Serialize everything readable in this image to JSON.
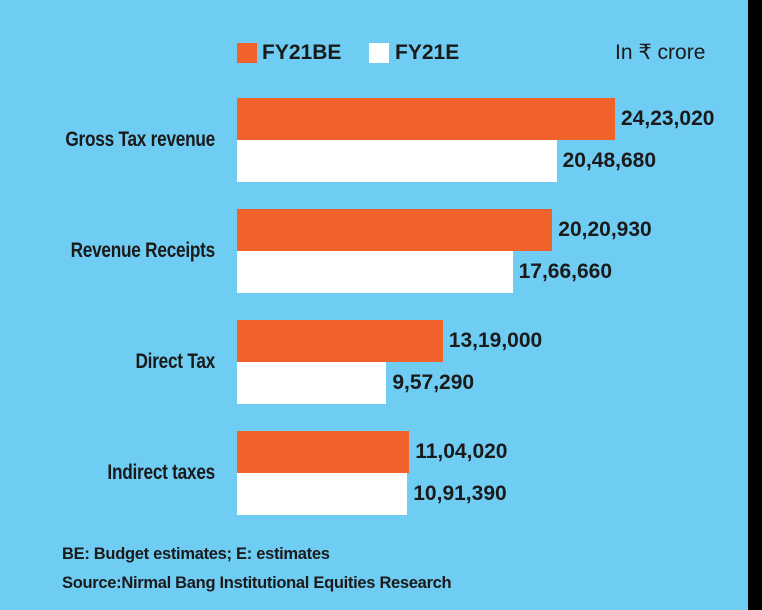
{
  "chart_data": {
    "type": "bar",
    "orientation": "horizontal",
    "title": "",
    "unit_label": "In ₹ crore",
    "categories": [
      "Gross Tax revenue",
      "Revenue Receipts",
      "Direct Tax",
      "Indirect taxes"
    ],
    "series": [
      {
        "name": "FY21BE",
        "color": "#f0622a",
        "values": [
          2423020,
          2020930,
          1319000,
          1104020
        ],
        "labels": [
          "24,23,020",
          "20,20,930",
          "13,19,000",
          "11,04,020"
        ]
      },
      {
        "name": "FY21E",
        "color": "#ffffff",
        "values": [
          2048680,
          1766660,
          957290,
          1091390
        ],
        "labels": [
          "20,48,680",
          "17,66,660",
          "9,57,290",
          "10,91,390"
        ]
      }
    ],
    "xlim": [
      0,
      2423020
    ],
    "grid": false,
    "legend_position": "top"
  },
  "footnotes": {
    "abbrev": "BE: Budget estimates; E: estimates",
    "source": "Source:Nirmal Bang Institutional Equities Research"
  }
}
